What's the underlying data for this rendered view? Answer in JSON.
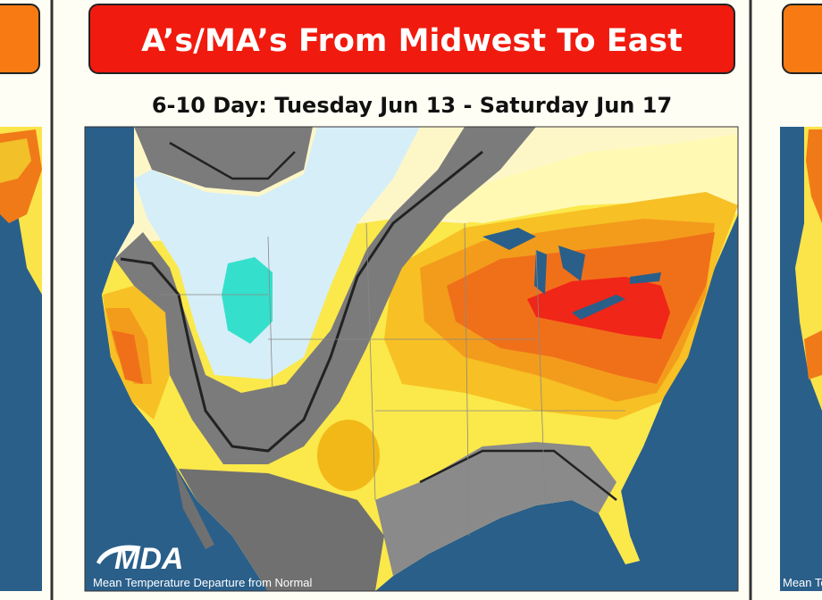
{
  "header": {
    "title": "A’s/MA’s From Midwest To East",
    "subtitle": "6-10 Day: Tuesday Jun 13 - Saturday Jun 17"
  },
  "map": {
    "logo": "MDA",
    "caption": "Mean Temperature Departure from Normal"
  }
}
